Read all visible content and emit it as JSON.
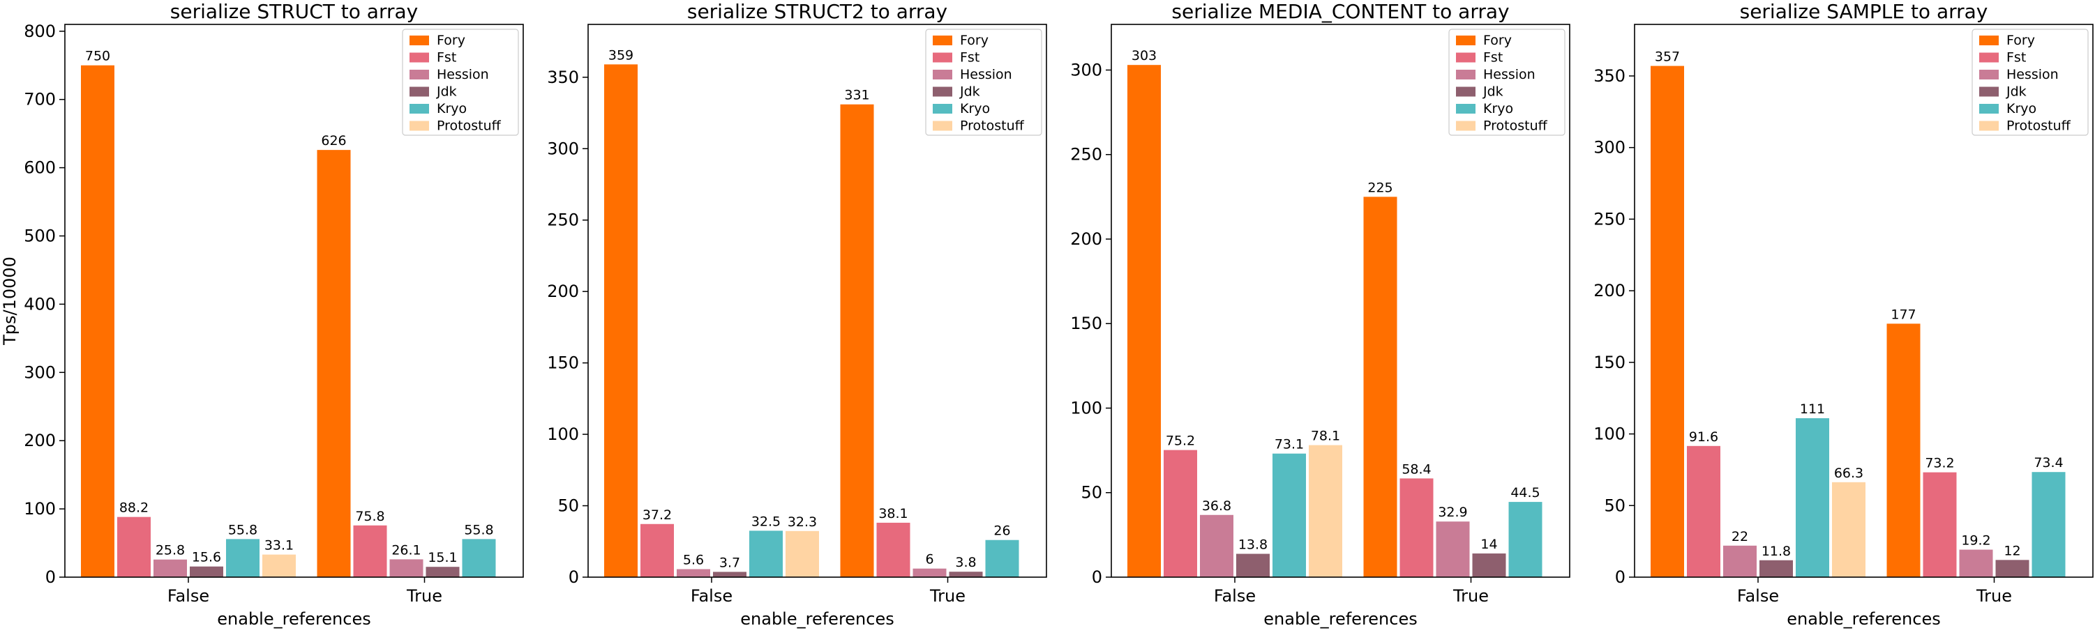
{
  "figure": {
    "ylabel": "Tps/10000",
    "xlabel": "enable_references",
    "legend_placement": "top-right"
  },
  "series_colors": {
    "Fory": "#FF6F00",
    "Fst": "#E76A7D",
    "Hession": "#C97C96",
    "Jdk": "#8E5F6E",
    "Kryo": "#55BCC1",
    "Protostuff": "#FFD4A3"
  },
  "chart_data": [
    {
      "type": "bar",
      "title": "serialize STRUCT to array",
      "xlabel": "enable_references",
      "ylabel": "Tps/10000",
      "categories": [
        "False",
        "True"
      ],
      "ylim": [
        0,
        810
      ],
      "yticks": [
        0,
        100,
        200,
        300,
        400,
        500,
        600,
        700,
        800
      ],
      "legend": "top-right",
      "series": [
        {
          "name": "Fory",
          "values": [
            750,
            626
          ]
        },
        {
          "name": "Fst",
          "values": [
            88.2,
            75.8
          ]
        },
        {
          "name": "Hession",
          "values": [
            25.8,
            26.1
          ]
        },
        {
          "name": "Jdk",
          "values": [
            15.6,
            15.1
          ]
        },
        {
          "name": "Kryo",
          "values": [
            55.8,
            55.8
          ]
        },
        {
          "name": "Protostuff",
          "values": [
            33.1,
            null
          ]
        }
      ]
    },
    {
      "type": "bar",
      "title": "serialize STRUCT2 to array",
      "xlabel": "enable_references",
      "ylabel": "",
      "categories": [
        "False",
        "True"
      ],
      "ylim": [
        0,
        387
      ],
      "yticks": [
        0,
        50,
        100,
        150,
        200,
        250,
        300,
        350
      ],
      "legend": "top-right",
      "series": [
        {
          "name": "Fory",
          "values": [
            359,
            331
          ]
        },
        {
          "name": "Fst",
          "values": [
            37.2,
            38.1
          ]
        },
        {
          "name": "Hession",
          "values": [
            5.6,
            6
          ]
        },
        {
          "name": "Jdk",
          "values": [
            3.7,
            3.8
          ]
        },
        {
          "name": "Kryo",
          "values": [
            32.5,
            26
          ]
        },
        {
          "name": "Protostuff",
          "values": [
            32.3,
            null
          ]
        }
      ]
    },
    {
      "type": "bar",
      "title": "serialize MEDIA_CONTENT to array",
      "xlabel": "enable_references",
      "ylabel": "",
      "categories": [
        "False",
        "True"
      ],
      "ylim": [
        0,
        327
      ],
      "yticks": [
        0,
        50,
        100,
        150,
        200,
        250,
        300
      ],
      "legend": "top-right",
      "series": [
        {
          "name": "Fory",
          "values": [
            303,
            225
          ]
        },
        {
          "name": "Fst",
          "values": [
            75.2,
            58.4
          ]
        },
        {
          "name": "Hession",
          "values": [
            36.8,
            32.9
          ]
        },
        {
          "name": "Jdk",
          "values": [
            13.8,
            14
          ]
        },
        {
          "name": "Kryo",
          "values": [
            73.1,
            44.5
          ]
        },
        {
          "name": "Protostuff",
          "values": [
            78.1,
            null
          ]
        }
      ]
    },
    {
      "type": "bar",
      "title": "serialize SAMPLE to array",
      "xlabel": "enable_references",
      "ylabel": "",
      "categories": [
        "False",
        "True"
      ],
      "ylim": [
        0,
        386
      ],
      "yticks": [
        0,
        50,
        100,
        150,
        200,
        250,
        300,
        350
      ],
      "legend": "top-right",
      "series": [
        {
          "name": "Fory",
          "values": [
            357,
            177
          ]
        },
        {
          "name": "Fst",
          "values": [
            91.6,
            73.2
          ]
        },
        {
          "name": "Hession",
          "values": [
            22,
            19.2
          ]
        },
        {
          "name": "Jdk",
          "values": [
            11.8,
            12
          ]
        },
        {
          "name": "Kryo",
          "values": [
            111,
            73.4
          ]
        },
        {
          "name": "Protostuff",
          "values": [
            66.3,
            null
          ]
        }
      ]
    }
  ]
}
